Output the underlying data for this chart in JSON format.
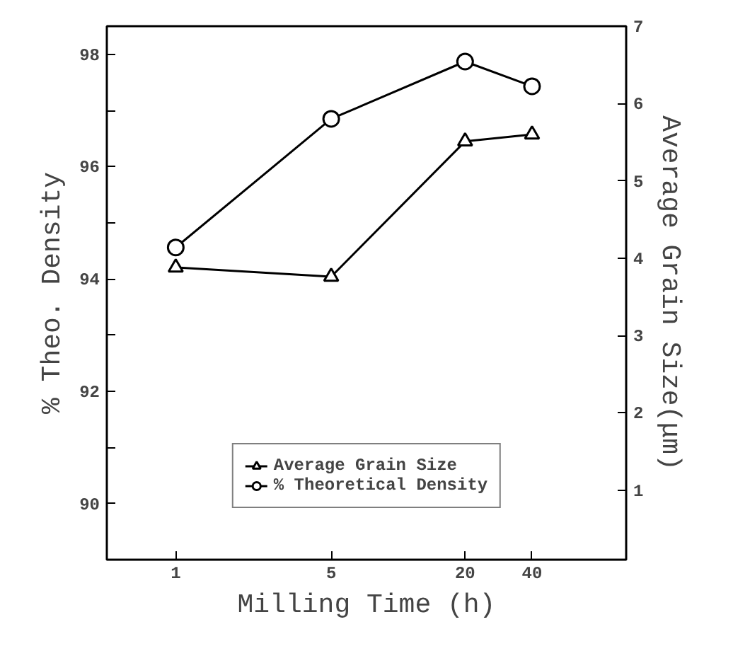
{
  "chart_data": {
    "type": "line",
    "xlabel": "Milling Time (h)",
    "ylabel": "% Theo. Density",
    "y2label": "Average Grain Size(μm)",
    "x": [
      1,
      5,
      20,
      40
    ],
    "log": "x",
    "xlim": [
      0.49,
      106
    ],
    "xticks": [
      1,
      5,
      20,
      40
    ],
    "ylim": [
      89,
      98.5
    ],
    "yticks": [
      90,
      {
        "value": 91,
        "label": null
      },
      92,
      {
        "value": 93,
        "label": null
      },
      94,
      {
        "value": 95,
        "label": null
      },
      96,
      {
        "value": 97,
        "label": null
      },
      98
    ],
    "y2lim": [
      0.1,
      7
    ],
    "y2ticks": [
      1,
      2,
      3,
      4,
      5,
      6,
      7
    ],
    "series": [
      {
        "name": "Average Grain Size",
        "color": "#000000",
        "marker": "triangle",
        "axis": "y2",
        "values": [
          3.88,
          3.76,
          5.51,
          5.6
        ]
      },
      {
        "name": "% Theoretical Density",
        "color": "#000000",
        "marker": "circle",
        "values": [
          94.56,
          96.85,
          97.87,
          97.43
        ]
      }
    ],
    "legend": "bottom",
    "grid": false
  }
}
